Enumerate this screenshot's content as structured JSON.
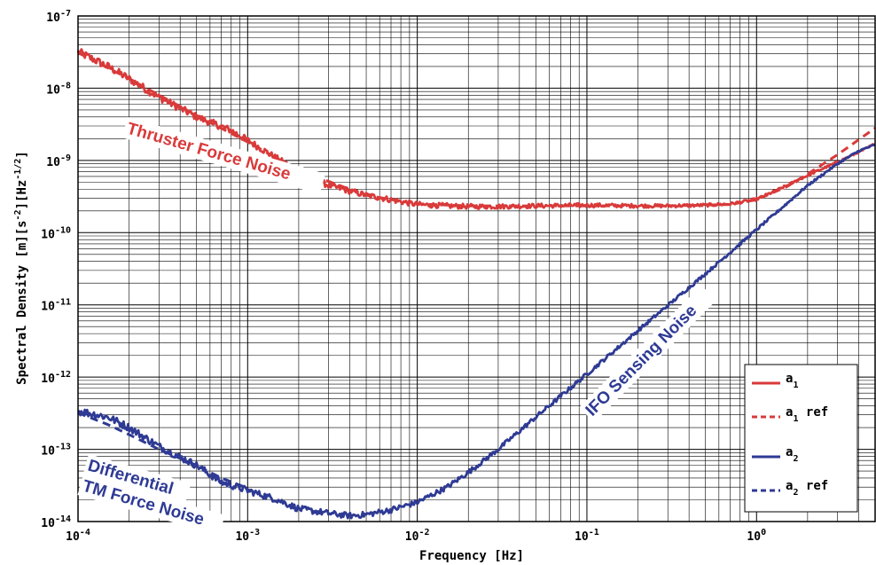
{
  "chart_data": {
    "type": "line",
    "xlabel": "Frequency [Hz]",
    "ylabel": "Spectral Density [m][s⁻²][Hz⁻¹ᐟ²]",
    "ylabel_parts": {
      "pre": "Spectral Density [m][s",
      "exp1": "-2",
      "mid": "][Hz",
      "exp2": "-1/2",
      "post": "]"
    },
    "xscale": "log",
    "yscale": "log",
    "xlim": [
      0.0001,
      5
    ],
    "ylim": [
      1e-14,
      1e-07
    ],
    "grid": true,
    "x_ticks": [
      {
        "base": "10",
        "exp": "-4",
        "v": 0.0001
      },
      {
        "base": "10",
        "exp": "-3",
        "v": 0.001
      },
      {
        "base": "10",
        "exp": "-2",
        "v": 0.01
      },
      {
        "base": "10",
        "exp": "-1",
        "v": 0.1
      },
      {
        "base": "10",
        "exp": "0",
        "v": 1
      }
    ],
    "y_ticks": [
      {
        "base": "10",
        "exp": "-14",
        "v": 1e-14
      },
      {
        "base": "10",
        "exp": "-13",
        "v": 1e-13
      },
      {
        "base": "10",
        "exp": "-12",
        "v": 1e-12
      },
      {
        "base": "10",
        "exp": "-11",
        "v": 1e-11
      },
      {
        "base": "10",
        "exp": "-10",
        "v": 1e-10
      },
      {
        "base": "10",
        "exp": "-9",
        "v": 1e-09
      },
      {
        "base": "10",
        "exp": "-8",
        "v": 1e-08
      },
      {
        "base": "10",
        "exp": "-7",
        "v": 1e-07
      }
    ],
    "legend_position": "bottom-right",
    "series": [
      {
        "name": "a₁",
        "legend_main": "a",
        "legend_sub": "1",
        "legend_suffix": "",
        "color": "#d93a3a",
        "dash": false,
        "noisy": true,
        "x": [
          0.0001,
          0.00015,
          0.0002,
          0.0003,
          0.0005,
          0.0008,
          0.001,
          0.0015,
          0.002,
          0.003,
          0.005,
          0.008,
          0.01,
          0.015,
          0.02,
          0.03,
          0.05,
          0.1,
          0.2,
          0.3,
          0.5,
          0.7,
          1,
          1.3,
          1.6,
          2,
          3,
          4,
          5
        ],
        "y": [
          3.2e-08,
          2e-08,
          1.35e-08,
          7.5e-09,
          4e-09,
          2.6e-09,
          1.9e-09,
          1.05e-09,
          7e-10,
          4.5e-10,
          3.3e-10,
          2.7e-10,
          2.45e-10,
          2.35e-10,
          2.3e-10,
          2.3e-10,
          2.35e-10,
          2.4e-10,
          2.35e-10,
          2.35e-10,
          2.4e-10,
          2.5e-10,
          2.9e-10,
          3.8e-10,
          4.8e-10,
          6.2e-10,
          9.5e-10,
          1.3e-09,
          1.7e-09
        ]
      },
      {
        "name": "a₁ ref",
        "legend_main": "a",
        "legend_sub": "1",
        "legend_suffix": " ref",
        "color": "#d93a3a",
        "dash": true,
        "noisy": false,
        "x": [
          0.0001,
          0.0002,
          0.0005,
          0.001,
          0.002,
          0.005,
          0.01,
          0.02,
          0.05,
          0.1,
          0.3,
          0.7,
          1,
          1.5,
          2,
          3,
          5
        ],
        "y": [
          3.1e-08,
          1.35e-08,
          4.2e-09,
          1.8e-09,
          7.3e-10,
          3.3e-10,
          2.5e-10,
          2.35e-10,
          2.35e-10,
          2.35e-10,
          2.35e-10,
          2.45e-10,
          2.85e-10,
          4.3e-10,
          6.5e-10,
          1.2e-09,
          2.8e-09
        ]
      },
      {
        "name": "a₂",
        "legend_main": "a",
        "legend_sub": "2",
        "legend_suffix": "",
        "color": "#2e3a94",
        "dash": false,
        "noisy": true,
        "x": [
          0.0001,
          0.00015,
          0.0002,
          0.0003,
          0.0005,
          0.0007,
          0.001,
          0.0015,
          0.002,
          0.003,
          0.004,
          0.005,
          0.007,
          0.01,
          0.015,
          0.02,
          0.03,
          0.05,
          0.1,
          0.2,
          0.5,
          1,
          1.5,
          2,
          3,
          4,
          5
        ],
        "y": [
          3.4e-13,
          2.8e-13,
          2e-13,
          1.1e-13,
          6e-14,
          3.5e-14,
          2.7e-14,
          2e-14,
          1.5e-14,
          1.3e-14,
          1.2e-14,
          1.25e-14,
          1.45e-14,
          1.85e-14,
          3e-14,
          4.8e-14,
          1e-13,
          2.8e-13,
          1.1e-12,
          4.4e-12,
          2.7e-11,
          1.1e-10,
          2.5e-10,
          4.5e-10,
          9e-10,
          1.35e-09,
          1.65e-09
        ]
      },
      {
        "name": "a₂ ref",
        "legend_main": "a",
        "legend_sub": "2",
        "legend_suffix": " ref",
        "color": "#2e3a94",
        "dash": true,
        "noisy": false,
        "x": [
          0.0001,
          0.00015,
          0.0002,
          0.0003,
          0.0005,
          0.0007,
          0.001
        ],
        "y": [
          3.2e-13,
          2.2e-13,
          1.6e-13,
          1e-13,
          6e-14,
          4e-14,
          2.9e-14
        ]
      }
    ],
    "annotations": [
      {
        "text": "Thruster Force Noise",
        "color": "#d93a3a"
      },
      {
        "text": "IFO Sensing Noise",
        "color": "#2e3a94"
      },
      {
        "text": "Differential",
        "color": "#2e3a94"
      },
      {
        "text": "TM Force Noise",
        "color": "#2e3a94"
      }
    ]
  }
}
